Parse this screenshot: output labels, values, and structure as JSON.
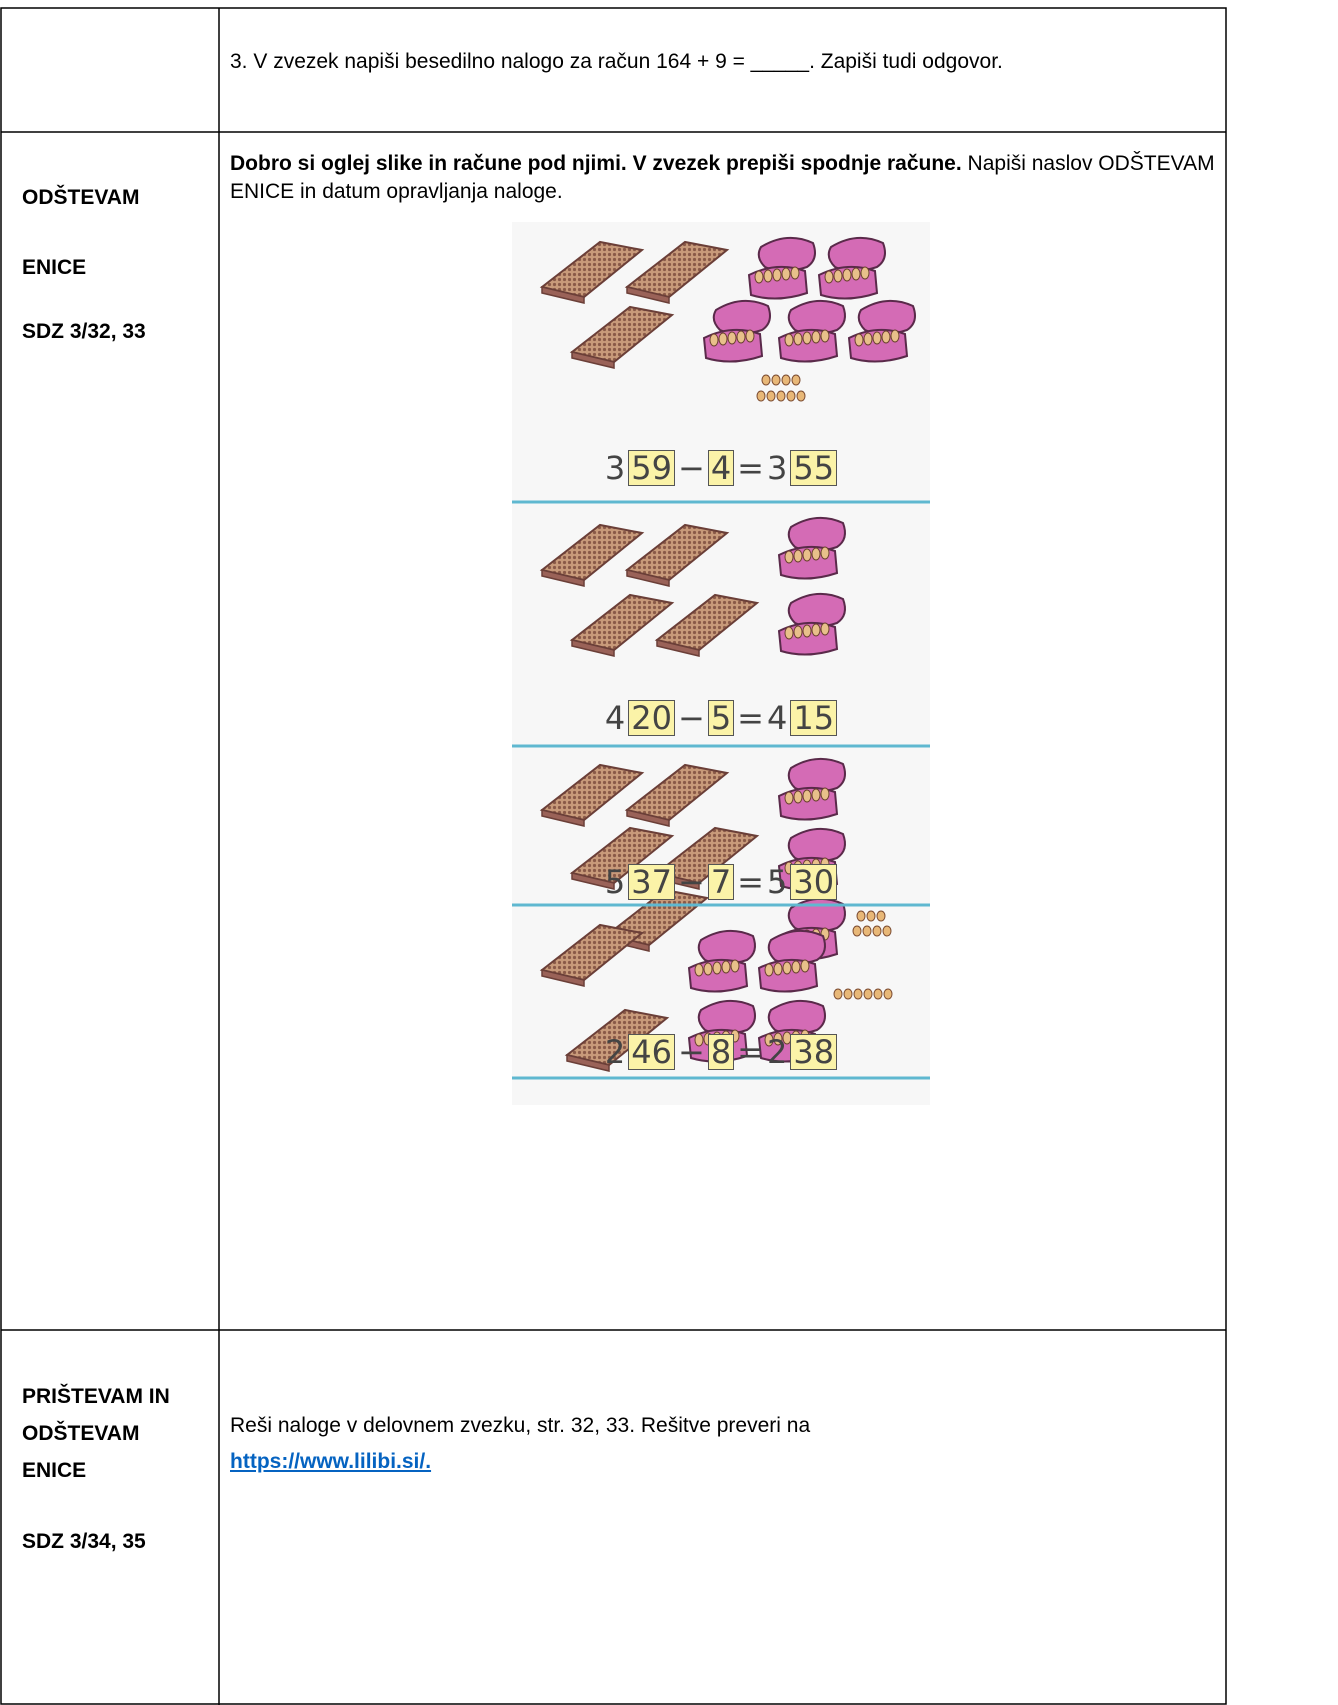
{
  "table": {
    "rows": [
      {
        "text": "3. V zvezek napiši besedilno nalogo za račun 164 + 9 = _____. Zapiši tudi odgovor."
      },
      {
        "label": [
          "ODŠTEVAM",
          "ENICE",
          "SDZ 3/32, 33"
        ],
        "instruction_bold": "Dobro si oglej slike in račune pod njimi. V zvezek prepiši spodnje račune.",
        "instruction": "Napiši naslov ODŠTEVAM ENICE in datum opravljanja naloge.",
        "equations": [
          [
            {
              "text": "3"
            },
            {
              "text": "59",
              "boxed": true
            },
            {
              "text": "−"
            },
            {
              "text": "4",
              "boxed": true
            },
            {
              "text": "="
            },
            {
              "text": "3"
            },
            {
              "text": "55",
              "boxed": true
            }
          ],
          [
            {
              "text": "4"
            },
            {
              "text": "20",
              "boxed": true
            },
            {
              "text": "−"
            },
            {
              "text": "5",
              "boxed": true
            },
            {
              "text": "="
            },
            {
              "text": "4"
            },
            {
              "text": "15",
              "boxed": true
            }
          ],
          [
            {
              "text": "5"
            },
            {
              "text": "37",
              "boxed": true
            },
            {
              "text": "−"
            },
            {
              "text": "7",
              "boxed": true
            },
            {
              "text": "="
            },
            {
              "text": "5"
            },
            {
              "text": "30",
              "boxed": true
            }
          ],
          [
            {
              "text": "2"
            },
            {
              "text": "46",
              "boxed": true
            },
            {
              "text": "−"
            },
            {
              "text": "8",
              "boxed": true
            },
            {
              "text": "="
            },
            {
              "text": "2"
            },
            {
              "text": "38",
              "boxed": true
            }
          ]
        ]
      },
      {
        "label": [
          "PRIŠTEVAM IN ODŠTEVAM ENICE",
          "SDZ 3/34, 35"
        ],
        "text": "Reši naloge v delovnem zvezku, str. 32, 33. Rešitve preveri na",
        "link": "https://www.lilibi.si/."
      }
    ]
  }
}
